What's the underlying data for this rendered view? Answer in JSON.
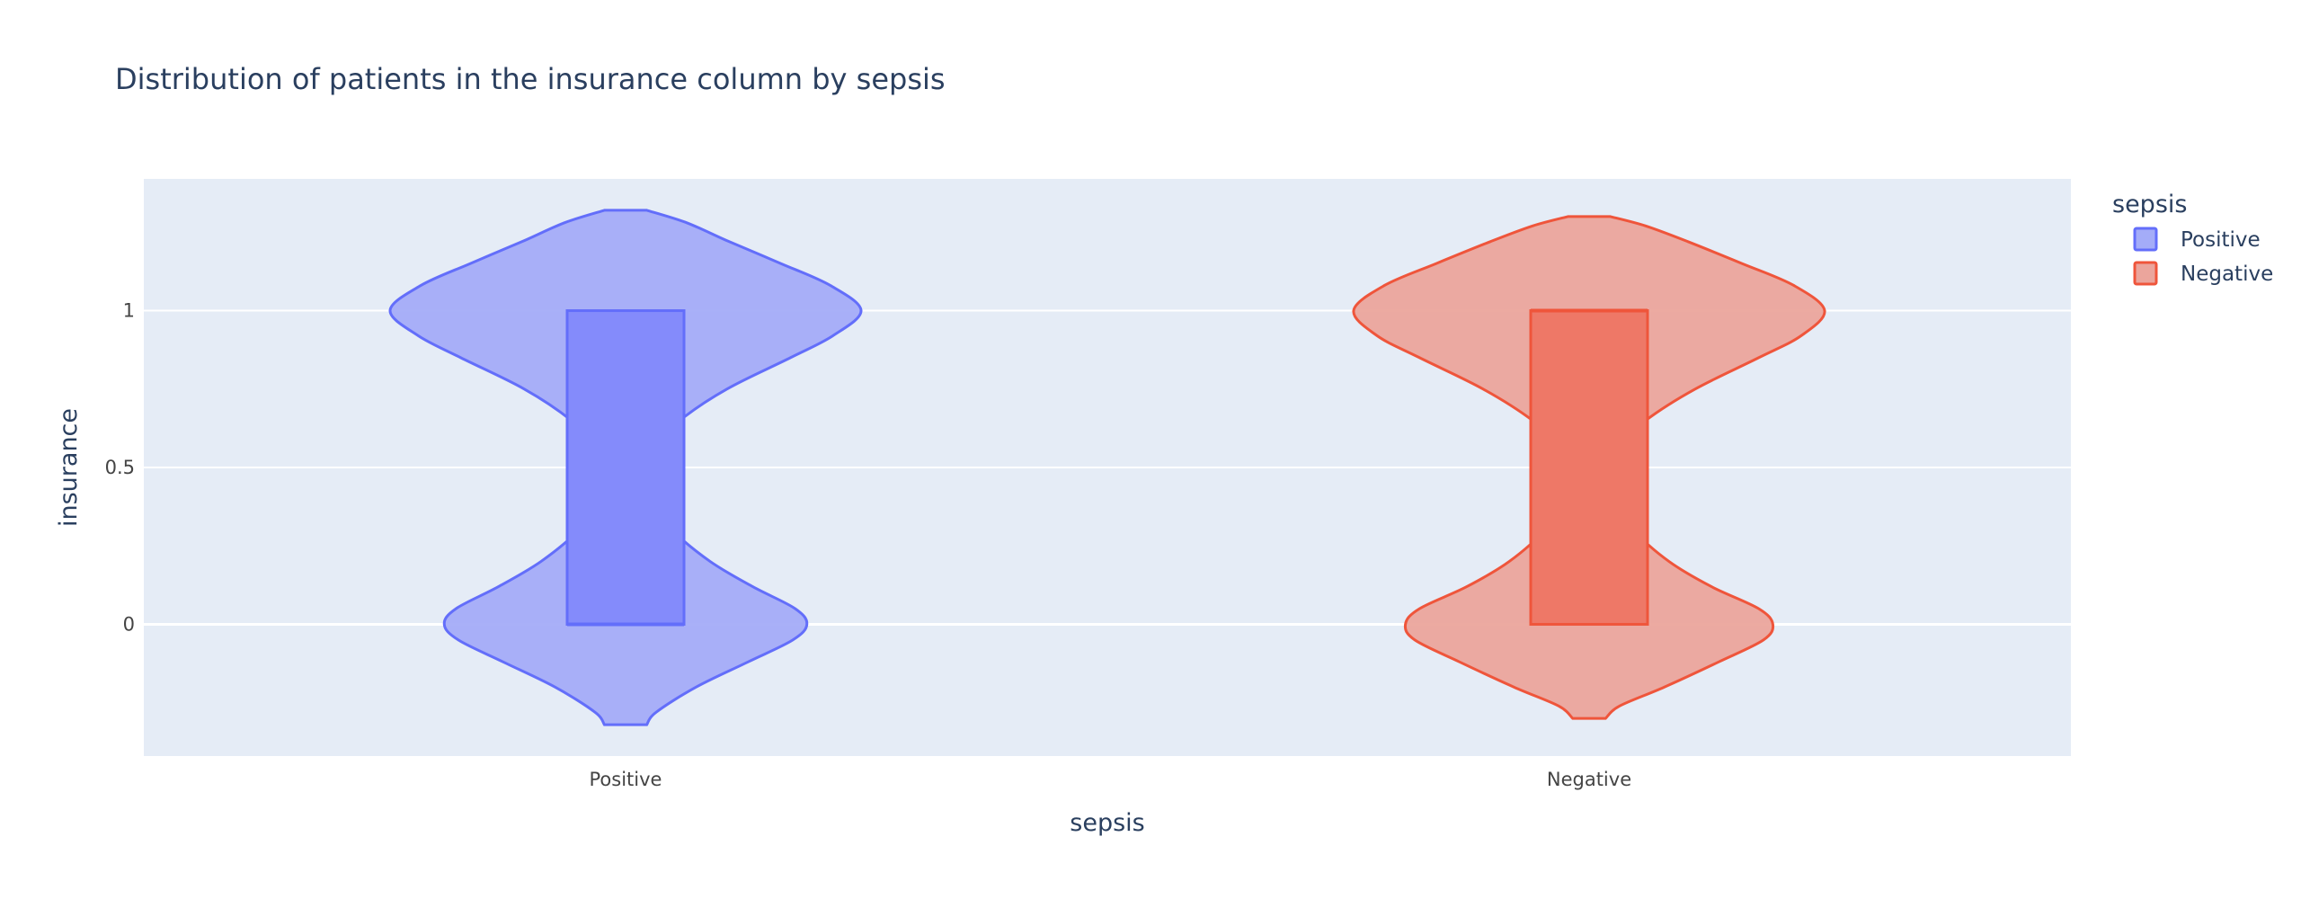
{
  "chart_data": {
    "type": "violin",
    "title": "Distribution of patients in the insurance column by sepsis",
    "xlabel": "sepsis",
    "ylabel": "insurance",
    "categories": [
      "Positive",
      "Negative"
    ],
    "ylim": [
      -0.42,
      1.42
    ],
    "yticks": [
      {
        "value": 0,
        "label": "0"
      },
      {
        "value": 0.5,
        "label": "0.5"
      },
      {
        "value": 1,
        "label": "1"
      }
    ],
    "grid": true,
    "legend": {
      "title": "sepsis",
      "position": "top-right"
    },
    "series": [
      {
        "name": "Positive",
        "color": "#636efa",
        "fill": "#a4acf8",
        "box_fill": "#848bfb",
        "box": {
          "q1": 0,
          "median": 0,
          "q3": 1
        },
        "range": [
          -0.32,
          1.32
        ],
        "density_y": [
          -0.32,
          -0.28,
          -0.2,
          -0.12,
          -0.05,
          0,
          0.05,
          0.12,
          0.2,
          0.3,
          0.4,
          0.48,
          0.56,
          0.65,
          0.75,
          0.85,
          0.92,
          1,
          1.08,
          1.15,
          1.22,
          1.28,
          1.32
        ],
        "density_w": [
          0.09,
          0.13,
          0.3,
          0.52,
          0.71,
          0.77,
          0.72,
          0.54,
          0.36,
          0.2,
          0.11,
          0.08,
          0.11,
          0.23,
          0.43,
          0.7,
          0.88,
          1.0,
          0.87,
          0.66,
          0.44,
          0.26,
          0.09
        ]
      },
      {
        "name": "Negative",
        "color": "#ef553b",
        "fill": "#eba59c",
        "box_fill": "#ee7867",
        "box": {
          "q1": 0,
          "median": 1,
          "q3": 1
        },
        "range": [
          -0.3,
          1.3
        ],
        "density_y": [
          -0.3,
          -0.26,
          -0.2,
          -0.12,
          -0.05,
          0,
          0.05,
          0.12,
          0.2,
          0.3,
          0.4,
          0.48,
          0.56,
          0.65,
          0.75,
          0.85,
          0.92,
          1,
          1.08,
          1.15,
          1.22,
          1.27,
          1.3
        ],
        "density_w": [
          0.07,
          0.13,
          0.32,
          0.55,
          0.74,
          0.78,
          0.72,
          0.52,
          0.34,
          0.19,
          0.11,
          0.08,
          0.11,
          0.24,
          0.45,
          0.72,
          0.9,
          1.0,
          0.87,
          0.65,
          0.42,
          0.24,
          0.09
        ]
      }
    ]
  }
}
